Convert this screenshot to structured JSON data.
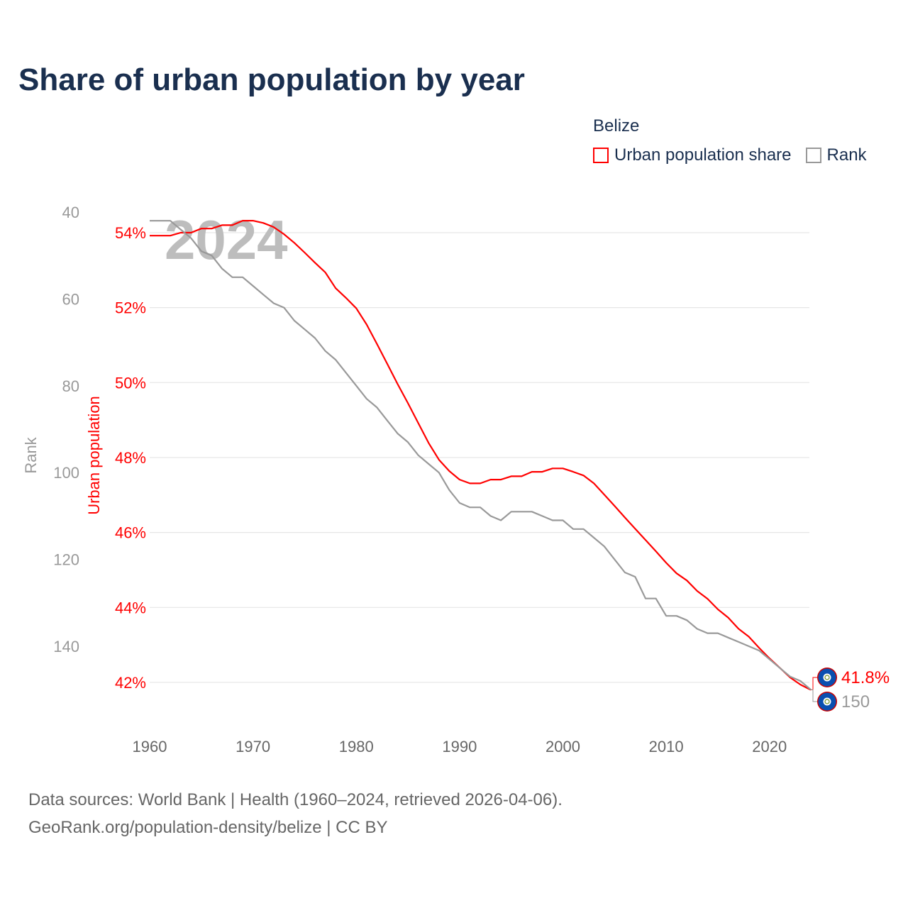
{
  "title": "Share of urban population by year",
  "legend": {
    "title": "Belize",
    "items": [
      {
        "label": "Urban population share",
        "color": "#ff0000"
      },
      {
        "label": "Rank",
        "color": "#999999"
      }
    ]
  },
  "watermark_year": "2024",
  "footer": {
    "line1": "Data sources: World Bank | Health (1960–2024, retrieved 2026-04-06).",
    "line2": "GeoRank.org/population-density/belize | CC BY"
  },
  "chart_data": {
    "type": "line",
    "title": "Share of urban population by year",
    "xlabel": "",
    "y_left_label": "Rank",
    "y_right_label": "Urban population",
    "x_ticks": [
      1960,
      1970,
      1980,
      1990,
      2000,
      2010,
      2020
    ],
    "x_range": [
      1960,
      2024
    ],
    "pct_ticks": [
      54,
      52,
      50,
      48,
      46,
      44,
      42
    ],
    "pct_tick_labels": [
      "54%",
      "52%",
      "50%",
      "48%",
      "46%",
      "44%",
      "42%"
    ],
    "pct_range": [
      41.3,
      54.6
    ],
    "rank_ticks": [
      40,
      60,
      80,
      100,
      120,
      140
    ],
    "rank_tick_labels": [
      "40",
      "60",
      "80",
      "100",
      "120",
      "140"
    ],
    "rank_range": [
      38,
      155
    ],
    "grid": true,
    "legend_position": "top-right",
    "x": [
      1960,
      1961,
      1962,
      1963,
      1964,
      1965,
      1966,
      1967,
      1968,
      1969,
      1970,
      1971,
      1972,
      1973,
      1974,
      1975,
      1976,
      1977,
      1978,
      1979,
      1980,
      1981,
      1982,
      1983,
      1984,
      1985,
      1986,
      1987,
      1988,
      1989,
      1990,
      1991,
      1992,
      1993,
      1994,
      1995,
      1996,
      1997,
      1998,
      1999,
      2000,
      2001,
      2002,
      2003,
      2004,
      2005,
      2006,
      2007,
      2008,
      2009,
      2010,
      2011,
      2012,
      2013,
      2014,
      2015,
      2016,
      2017,
      2018,
      2019,
      2020,
      2021,
      2022,
      2023,
      2024
    ],
    "series": [
      {
        "name": "Urban population share",
        "color": "#ff0000",
        "axis": "pct",
        "values": [
          53.92,
          53.92,
          53.92,
          54.0,
          54.0,
          54.11,
          54.11,
          54.2,
          54.2,
          54.32,
          54.32,
          54.26,
          54.15,
          53.96,
          53.73,
          53.47,
          53.2,
          52.94,
          52.52,
          52.26,
          51.98,
          51.55,
          51.03,
          50.5,
          49.96,
          49.45,
          48.92,
          48.39,
          47.94,
          47.64,
          47.41,
          47.31,
          47.31,
          47.41,
          47.41,
          47.5,
          47.5,
          47.62,
          47.62,
          47.71,
          47.71,
          47.62,
          47.52,
          47.31,
          47.01,
          46.71,
          46.4,
          46.1,
          45.8,
          45.5,
          45.19,
          44.91,
          44.72,
          44.44,
          44.23,
          43.95,
          43.73,
          43.43,
          43.22,
          42.92,
          42.64,
          42.39,
          42.13,
          41.94,
          41.8
        ]
      },
      {
        "name": "Rank",
        "color": "#999999",
        "axis": "rank",
        "values": [
          42,
          42,
          42,
          44,
          46,
          49,
          50,
          53,
          55,
          55,
          57,
          59,
          61,
          62,
          65,
          67,
          69,
          72,
          74,
          77,
          80,
          83,
          85,
          88,
          91,
          93,
          96,
          98,
          100,
          104,
          107,
          108,
          108,
          110,
          111,
          109,
          109,
          109,
          110,
          111,
          111,
          113,
          113,
          115,
          117,
          120,
          123,
          124,
          129,
          129,
          133,
          133,
          134,
          136,
          137,
          137,
          138,
          139,
          140,
          141,
          143,
          145,
          147,
          148,
          150
        ]
      }
    ],
    "end_labels": {
      "pct": "41.8%",
      "rank": "150"
    }
  }
}
